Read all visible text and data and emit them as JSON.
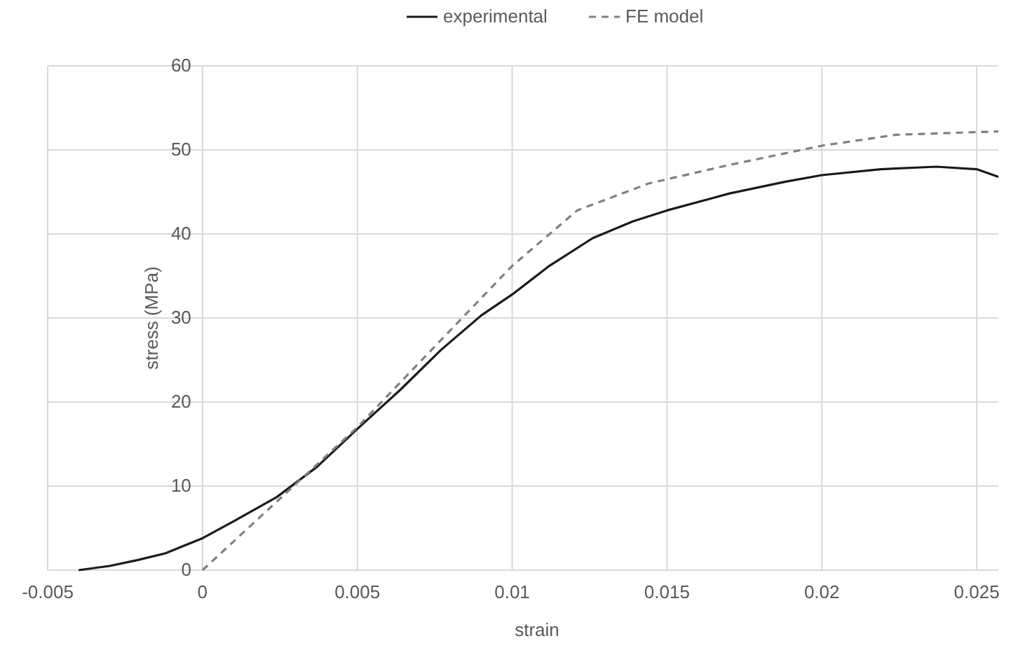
{
  "chart_data": {
    "type": "line",
    "xlabel": "strain",
    "ylabel": "stress (MPa)",
    "xlim": [
      -0.005,
      0.0257
    ],
    "ylim": [
      0,
      60
    ],
    "xticks": [
      -0.005,
      {
        "value": 0,
        "label": "0"
      },
      0.005,
      0.01,
      0.015,
      0.02,
      0.025
    ],
    "yticks": [
      0,
      10,
      20,
      30,
      40,
      50,
      60
    ],
    "grid": true,
    "legend": "top",
    "series": [
      {
        "name": "experimental",
        "color": "#1a1a1a",
        "line_style": "solid",
        "x": [
          -0.004,
          -0.003,
          -0.0021,
          -0.0012,
          0,
          0.001,
          0.0024,
          0.0037,
          0.005,
          0.0064,
          0.0077,
          0.009,
          0.01,
          0.0112,
          0.0126,
          0.0139,
          0.015,
          0.017,
          0.0188,
          0.02,
          0.0219,
          0.0237,
          0.025,
          0.0257
        ],
        "values": [
          0,
          0.5,
          1.2,
          2,
          3.8,
          5.8,
          8.7,
          12.3,
          16.8,
          21.5,
          26.2,
          30.3,
          32.8,
          36.2,
          39.5,
          41.5,
          42.8,
          44.8,
          46.2,
          47,
          47.7,
          48,
          47.7,
          46.8
        ]
      },
      {
        "name": "FE model",
        "color": "#808080",
        "line_style": "dashed",
        "x": [
          0,
          0.005,
          0.01,
          0.0121,
          0.0144,
          0.017,
          0.02,
          0.0224,
          0.0257
        ],
        "values": [
          0,
          17,
          36.2,
          42.8,
          46,
          48.2,
          50.5,
          51.8,
          52.2
        ]
      }
    ]
  }
}
